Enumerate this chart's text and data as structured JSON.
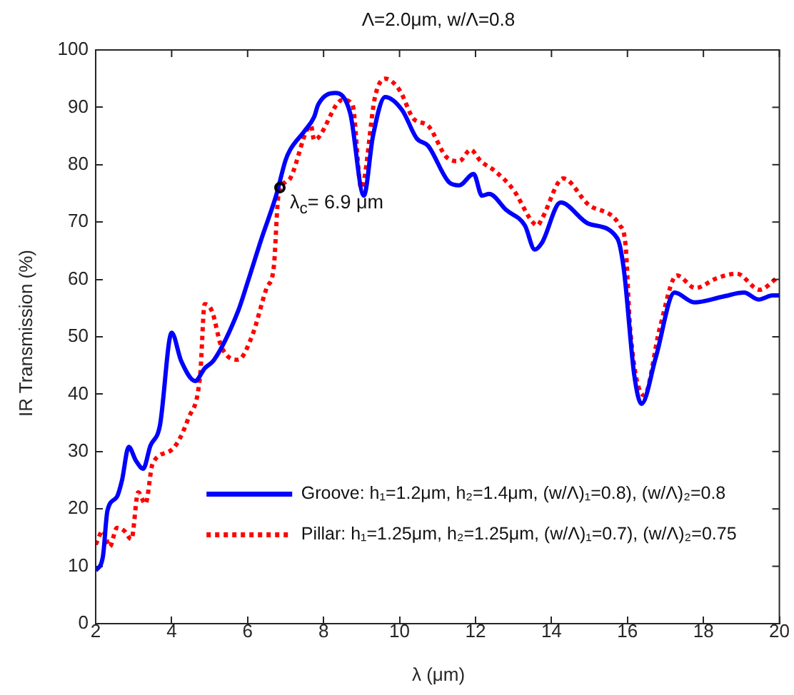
{
  "chart_data": {
    "type": "line",
    "title": "Λ=2.0μm, w/Λ=0.8",
    "xlabel": "λ (μm)",
    "ylabel": "IR Transmission (%)",
    "xlim": [
      2,
      20
    ],
    "xticks": [
      2,
      4,
      6,
      8,
      10,
      12,
      14,
      16,
      18,
      20
    ],
    "ylim": [
      0,
      100
    ],
    "yticks": [
      0,
      10,
      20,
      30,
      40,
      50,
      60,
      70,
      80,
      90,
      100
    ],
    "grid": false,
    "legend": "bottom right",
    "marker": "none",
    "annotations": [
      {
        "text": "λ$_{c}$= 6.9 μm",
        "x": 6.85,
        "y": 76
      }
    ],
    "series": [
      {
        "name": "Groove: h₁=1.2μm, h₂=1.4μm, (w/Λ)₁=0.8), (w/Λ)₂=0.8",
        "color": "#0000ff",
        "line_style": "solid",
        "x": [
          2.0,
          2.19,
          2.31,
          2.56,
          2.69,
          2.87,
          3.06,
          3.25,
          3.44,
          3.69,
          4.0,
          4.25,
          4.62,
          4.87,
          5.12,
          5.75,
          6.0,
          6.37,
          6.75,
          7.0,
          7.12,
          7.49,
          7.75,
          7.86,
          8.31,
          8.7,
          9.06,
          9.3,
          9.62,
          10.07,
          10.45,
          10.75,
          11.31,
          11.57,
          11.95,
          12.17,
          12.36,
          12.81,
          13.3,
          13.56,
          13.75,
          14.24,
          14.98,
          15.73,
          15.9,
          16.18,
          16.37,
          16.75,
          17.24,
          17.76,
          18.51,
          19.07,
          19.45,
          19.82,
          20.0
        ],
        "values": [
          9.2,
          11.7,
          19.7,
          22.1,
          24.9,
          30.8,
          28.4,
          27,
          31,
          34.5,
          50.7,
          45.8,
          42.3,
          44.5,
          46,
          54.5,
          59.5,
          67.2,
          74.6,
          80.8,
          82.6,
          85.8,
          88.3,
          90.5,
          92.5,
          89,
          74.6,
          85,
          91.8,
          89.5,
          84.6,
          83.3,
          76.9,
          76.4,
          78.4,
          74.6,
          74.9,
          72.1,
          69.4,
          65.2,
          66.4,
          73.4,
          69.7,
          67.2,
          62,
          43.3,
          38.3,
          46.5,
          57.7,
          56,
          57,
          57.7,
          56.5,
          57.2,
          57.2
        ]
      },
      {
        "name": "Pillar: h₁=1.25μm, h₂=1.25μm, (w/Λ)₁=0.7), (w/Λ)₂=0.75",
        "color": "#ff0000",
        "line_style": "dotted",
        "x": [
          2.0,
          2.19,
          2.37,
          2.56,
          2.75,
          2.94,
          3.12,
          3.31,
          3.5,
          4.0,
          4.44,
          4.75,
          4.87,
          5.06,
          5.31,
          5.75,
          6.12,
          6.5,
          6.69,
          6.81,
          7.0,
          7.12,
          7.67,
          7.75,
          8.5,
          8.76,
          8.99,
          9.36,
          9.62,
          10.0,
          10.37,
          10.75,
          11.24,
          11.57,
          11.87,
          12.14,
          12.51,
          13.0,
          13.49,
          13.63,
          13.75,
          14.31,
          14.98,
          15.8,
          15.95,
          16.07,
          16.44,
          16.85,
          17.3,
          17.79,
          18.35,
          18.88,
          19.48,
          19.93
        ],
        "values": [
          13.8,
          16.2,
          13.4,
          16.7,
          16.2,
          14.7,
          22.9,
          20.9,
          27.9,
          30.3,
          35.8,
          43.3,
          55.7,
          54.5,
          48.3,
          46,
          50.2,
          58.5,
          62.2,
          74.6,
          77,
          77.6,
          86.8,
          84.3,
          91.3,
          90.5,
          75.9,
          92,
          95,
          93,
          88,
          86.8,
          81.3,
          80.6,
          82.6,
          80.6,
          78.9,
          75.6,
          70.1,
          69.4,
          70.6,
          77.6,
          73,
          69.4,
          66,
          51.5,
          39.8,
          51.5,
          60.7,
          58.5,
          60.2,
          61,
          58.2,
          60.2
        ]
      }
    ]
  }
}
